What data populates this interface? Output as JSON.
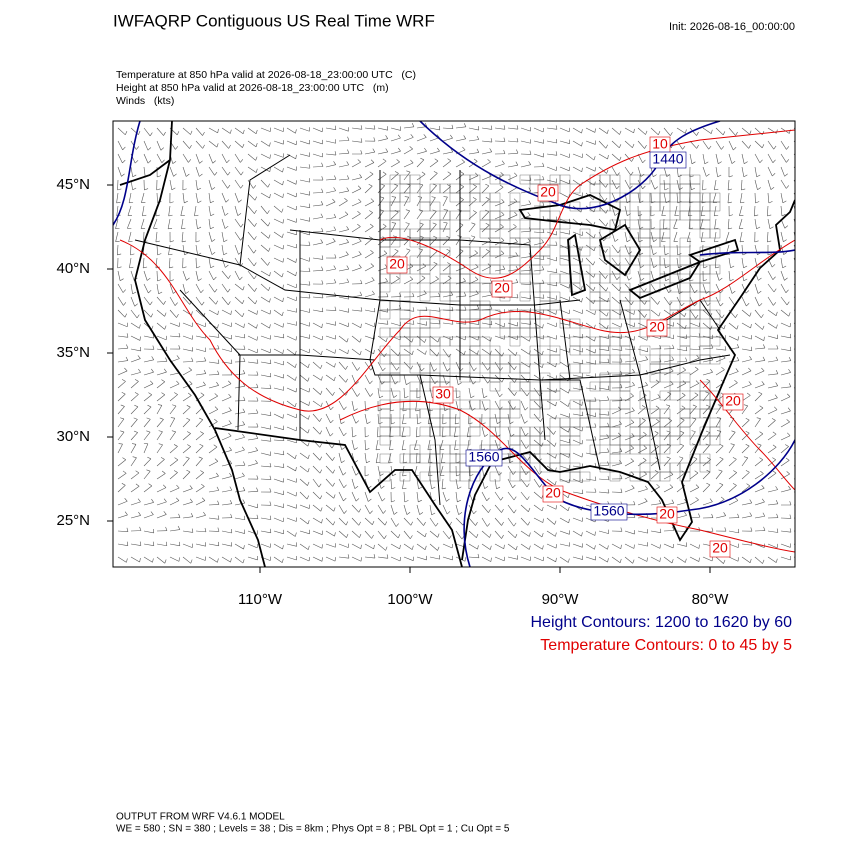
{
  "header": {
    "title": "IWFAQRP Contiguous US Real Time WRF",
    "init": "Init: 2026-08-16_00:00:00",
    "fields": [
      "Temperature at 850 hPa valid at 2026-08-18_23:00:00 UTC   (C)",
      "Height at 850 hPa valid at 2026-08-18_23:00:00 UTC   (m)",
      "Winds   (kts)"
    ]
  },
  "map": {
    "lat_labels": [
      "45°N",
      "40°N",
      "35°N",
      "30°N",
      "25°N"
    ],
    "lon_labels": [
      "110°W",
      "100°W",
      "90°W",
      "80°W"
    ],
    "contour_labels": [
      {
        "text": "10",
        "kind": "temperature"
      },
      {
        "text": "1440",
        "kind": "height"
      },
      {
        "text": "20",
        "kind": "temperature"
      },
      {
        "text": "20",
        "kind": "temperature"
      },
      {
        "text": "20",
        "kind": "temperature"
      },
      {
        "text": "20",
        "kind": "temperature"
      },
      {
        "text": "30",
        "kind": "temperature"
      },
      {
        "text": "1560",
        "kind": "height"
      },
      {
        "text": "20",
        "kind": "temperature"
      },
      {
        "text": "20",
        "kind": "temperature"
      },
      {
        "text": "1560",
        "kind": "height"
      },
      {
        "text": "20",
        "kind": "temperature"
      },
      {
        "text": "20",
        "kind": "temperature"
      }
    ]
  },
  "legend": {
    "height": "Height Contours: 1200 to 1620 by 60",
    "temperature": "Temperature Contours: 0 to 45 by 5"
  },
  "footer": [
    "OUTPUT FROM WRF V4.6.1 MODEL",
    "WE = 580 ; SN = 380 ; Levels = 38 ; Dis = 8km ; Phys Opt = 8 ; PBL Opt = 1 ; Cu Opt = 5"
  ]
}
